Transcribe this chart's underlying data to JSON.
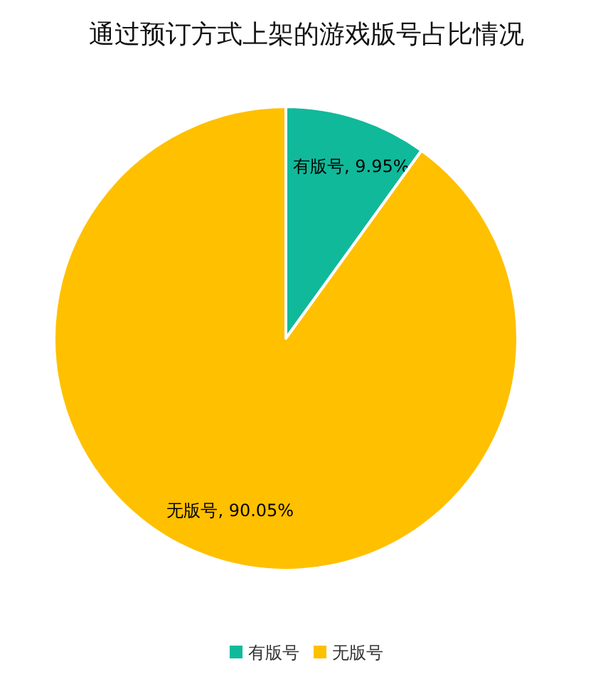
{
  "chart_data": {
    "type": "pie",
    "title": "通过预订方式上架的游戏版号占比情况",
    "categories": [
      "有版号",
      "无版号"
    ],
    "values": [
      9.95,
      90.05
    ],
    "value_labels": [
      "有版号, 9.95%",
      "无版号, 90.05%"
    ],
    "colors": [
      "#10b99a",
      "#ffc000"
    ],
    "legend": "bottom"
  }
}
